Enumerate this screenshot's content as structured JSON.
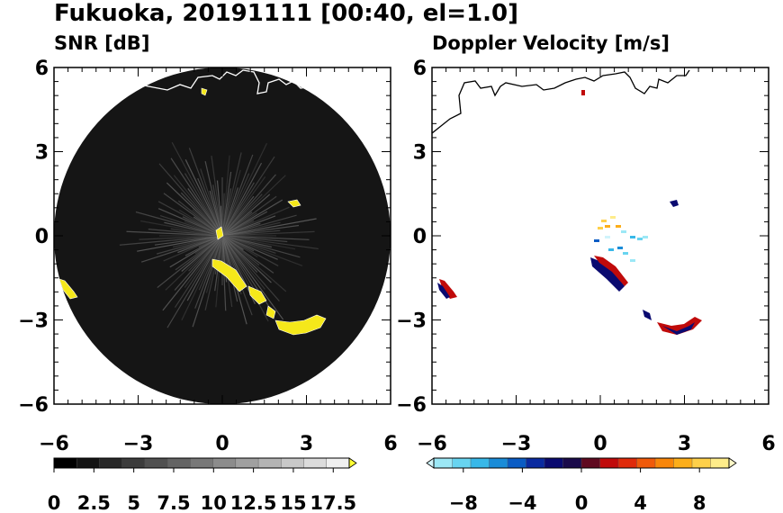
{
  "figure": {
    "title": "Fukuoka, 20191111 [00:40, el=1.0]"
  },
  "chart_data": [
    {
      "type": "heatmap",
      "title": "SNR [dB]",
      "xlim": [
        -6,
        6
      ],
      "ylim": [
        -6,
        6
      ],
      "x_ticks": [
        "−6",
        "−3",
        "0",
        "3",
        "6"
      ],
      "y_ticks": [
        "6",
        "3",
        "0",
        "−3",
        "−6"
      ],
      "colorbar": {
        "min": 0,
        "max": 18.5,
        "extend": "max",
        "tick_values": [
          0,
          2.5,
          5,
          7.5,
          10,
          12.5,
          15,
          17.5
        ],
        "tick_labels": [
          "0",
          "2.5",
          "5",
          "7.5",
          "10",
          "12.5",
          "15",
          "17.5"
        ],
        "colors": [
          "#000000",
          "#141414",
          "#282828",
          "#3c3c3c",
          "#505050",
          "#646464",
          "#787878",
          "#8c8c8c",
          "#a0a0a0",
          "#b4b4b4",
          "#c8c8c8",
          "#dcdcdc",
          "#f0f0f0",
          "#ffff33"
        ]
      },
      "strong_echo_color": "#f5e81a",
      "background_color": "#151515",
      "coastline_color": "#ffffff"
    },
    {
      "type": "heatmap",
      "title": "Doppler Velocity [m/s]",
      "xlim": [
        -6,
        6
      ],
      "ylim": [
        -6,
        6
      ],
      "x_ticks": [
        "−6",
        "−3",
        "0",
        "3",
        "6"
      ],
      "y_ticks": [
        "6",
        "3",
        "0",
        "−3",
        "−6"
      ],
      "colorbar": {
        "min": -10,
        "max": 10,
        "extend": "both",
        "tick_values": [
          -8,
          -4,
          0,
          4,
          8
        ],
        "tick_labels": [
          "−8",
          "−4",
          "0",
          "4",
          "8"
        ],
        "colors": [
          "#d0f4fb",
          "#9ce8f6",
          "#68d4f0",
          "#38b8e8",
          "#1a8cd8",
          "#0a5cc4",
          "#0a2aa0",
          "#0a0a70",
          "#1a0a4a",
          "#600a20",
          "#c00a0a",
          "#e02a0a",
          "#f05a0a",
          "#f8860a",
          "#fcae1a",
          "#fed04a",
          "#feec8a",
          "#fef8c8"
        ]
      },
      "coastline_color": "#000000"
    }
  ]
}
